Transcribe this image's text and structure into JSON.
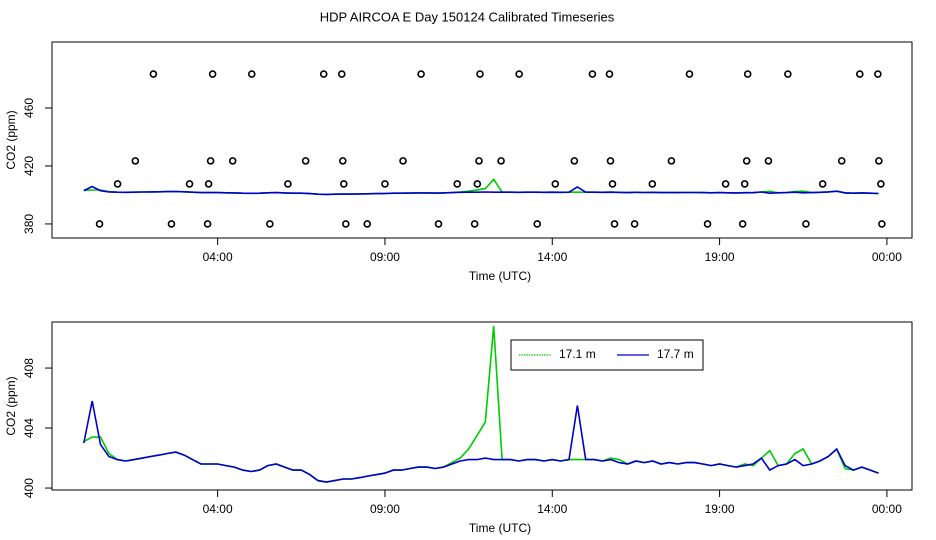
{
  "chart_data": [
    {
      "type": "line",
      "title": "HDP AIRCOA E  Day 150124  Calibrated Timeseries",
      "x_label": "Time (UTC)",
      "y_label": "CO2 (ppm)",
      "xlim": [
        -0.95,
        24.75
      ],
      "xticks": [
        {
          "value": 4,
          "label": "04:00"
        },
        {
          "value": 9,
          "label": "09:00"
        },
        {
          "value": 14,
          "label": "14:00"
        },
        {
          "value": 19,
          "label": "19:00"
        },
        {
          "value": 24,
          "label": "00:00"
        }
      ],
      "ylim": [
        370.3,
        505.5
      ],
      "yticks": [
        380,
        420,
        460
      ],
      "x": [
        0,
        0.25,
        0.5,
        0.75,
        1,
        1.25,
        1.5,
        1.75,
        2,
        2.25,
        2.5,
        2.75,
        3,
        3.25,
        3.5,
        3.75,
        4,
        4.25,
        4.5,
        4.75,
        5,
        5.25,
        5.5,
        5.75,
        6,
        6.25,
        6.5,
        6.75,
        7,
        7.25,
        7.5,
        7.75,
        8,
        8.25,
        8.5,
        8.75,
        9,
        9.25,
        9.5,
        9.75,
        10,
        10.25,
        10.5,
        10.75,
        11,
        11.25,
        11.5,
        11.75,
        12,
        12.25,
        12.5,
        12.75,
        13,
        13.25,
        13.5,
        13.75,
        14,
        14.25,
        14.5,
        14.75,
        15,
        15.25,
        15.5,
        15.75,
        16,
        16.25,
        16.5,
        16.75,
        17,
        17.25,
        17.5,
        17.75,
        18,
        18.25,
        18.5,
        18.75,
        19,
        19.25,
        19.5,
        19.75,
        20,
        20.25,
        20.5,
        20.75,
        21,
        21.25,
        21.5,
        21.75,
        22,
        22.25,
        22.5,
        22.75,
        23,
        23.25,
        23.5,
        23.75
      ],
      "series": [
        {
          "color": "#00cc00",
          "values": [
            403.1,
            403.4,
            403.4,
            402.3,
            401.9,
            401.8,
            401.9,
            402.0,
            402.1,
            402.2,
            402.3,
            402.4,
            402.2,
            401.9,
            401.6,
            401.6,
            401.6,
            401.5,
            401.4,
            401.2,
            401.1,
            401.2,
            401.5,
            401.6,
            401.4,
            401.2,
            401.2,
            400.9,
            400.5,
            400.4,
            400.5,
            400.6,
            400.6,
            400.7,
            400.8,
            400.9,
            401.0,
            401.2,
            401.2,
            401.3,
            401.4,
            401.4,
            401.3,
            401.4,
            401.7,
            402.0,
            402.6,
            403.5,
            404.4,
            410.8,
            401.9,
            401.9,
            401.8,
            401.9,
            401.9,
            401.8,
            401.9,
            401.8,
            401.9,
            401.9,
            401.9,
            401.9,
            401.8,
            402.0,
            401.9,
            401.6,
            401.8,
            401.7,
            401.8,
            401.6,
            401.7,
            401.6,
            401.7,
            401.7,
            401.6,
            401.5,
            401.6,
            401.5,
            401.4,
            401.6,
            401.5,
            402.0,
            402.5,
            401.5,
            401.6,
            402.3,
            402.6,
            401.6,
            401.8,
            402.1,
            402.6,
            401.3,
            401.2,
            401.4,
            401.2,
            401.0
          ]
        },
        {
          "color": "#0000cc",
          "values": [
            403.0,
            405.8,
            402.9,
            402.1,
            401.9,
            401.8,
            401.9,
            402.0,
            402.1,
            402.2,
            402.3,
            402.4,
            402.2,
            401.9,
            401.6,
            401.6,
            401.6,
            401.5,
            401.4,
            401.2,
            401.1,
            401.2,
            401.5,
            401.6,
            401.4,
            401.2,
            401.2,
            400.9,
            400.5,
            400.4,
            400.5,
            400.6,
            400.6,
            400.7,
            400.8,
            400.9,
            401.0,
            401.2,
            401.2,
            401.3,
            401.4,
            401.4,
            401.3,
            401.4,
            401.6,
            401.8,
            401.9,
            401.9,
            402.0,
            401.9,
            401.9,
            401.9,
            401.8,
            401.9,
            401.9,
            401.8,
            401.9,
            401.8,
            401.9,
            405.5,
            401.9,
            401.9,
            401.8,
            401.9,
            401.7,
            401.6,
            401.8,
            401.7,
            401.8,
            401.6,
            401.7,
            401.6,
            401.7,
            401.7,
            401.6,
            401.5,
            401.6,
            401.5,
            401.4,
            401.5,
            401.6,
            402.0,
            401.2,
            401.5,
            401.6,
            401.9,
            401.5,
            401.6,
            401.8,
            402.1,
            402.6,
            401.5,
            401.2,
            401.4,
            401.2,
            401.0
          ]
        }
      ],
      "points": {
        "color": "#000000",
        "x": [
          2.08,
          3.85,
          5.02,
          7.17,
          7.71,
          10.08,
          11.84,
          13.01,
          15.2,
          15.71,
          18.1,
          19.84,
          21.04,
          23.19,
          23.73,
          1.54,
          3.79,
          4.45,
          6.63,
          7.74,
          9.54,
          11.81,
          12.47,
          14.66,
          15.74,
          17.56,
          19.81,
          20.46,
          22.65,
          23.76,
          1.01,
          3.16,
          3.73,
          6.1,
          7.77,
          9.0,
          11.16,
          11.76,
          14.09,
          15.8,
          16.99,
          19.18,
          19.75,
          22.08,
          23.82,
          0.47,
          2.62,
          3.7,
          5.56,
          7.83,
          8.47,
          10.6,
          11.68,
          13.55,
          15.86,
          16.46,
          18.64,
          19.69,
          21.58,
          23.85
        ],
        "y": [
          483.4,
          483.4,
          483.4,
          483.4,
          483.4,
          483.4,
          483.4,
          483.4,
          483.4,
          483.4,
          483.4,
          483.4,
          483.4,
          483.4,
          483.4,
          423.5,
          423.5,
          423.5,
          423.5,
          423.5,
          423.5,
          423.5,
          423.5,
          423.5,
          423.5,
          423.5,
          423.5,
          423.5,
          423.5,
          423.5,
          407.6,
          407.6,
          407.6,
          407.6,
          407.6,
          407.6,
          407.6,
          407.6,
          407.6,
          407.6,
          407.6,
          407.6,
          407.6,
          407.6,
          407.6,
          380,
          380,
          380,
          380,
          380,
          380,
          380,
          380,
          380,
          380,
          380,
          380,
          380,
          380,
          380
        ]
      }
    },
    {
      "type": "line",
      "x_label": "Time (UTC)",
      "y_label": "CO2 (ppm)",
      "xlim": [
        -0.95,
        24.75
      ],
      "xticks": [
        {
          "value": 4,
          "label": "04:00"
        },
        {
          "value": 9,
          "label": "09:00"
        },
        {
          "value": 14,
          "label": "14:00"
        },
        {
          "value": 19,
          "label": "19:00"
        },
        {
          "value": 24,
          "label": "00:00"
        }
      ],
      "ylim": [
        399.87,
        411.07
      ],
      "yticks": [
        400,
        404,
        408
      ],
      "legend": "top",
      "x": [
        0,
        0.25,
        0.5,
        0.75,
        1,
        1.25,
        1.5,
        1.75,
        2,
        2.25,
        2.5,
        2.75,
        3,
        3.25,
        3.5,
        3.75,
        4,
        4.25,
        4.5,
        4.75,
        5,
        5.25,
        5.5,
        5.75,
        6,
        6.25,
        6.5,
        6.75,
        7,
        7.25,
        7.5,
        7.75,
        8,
        8.25,
        8.5,
        8.75,
        9,
        9.25,
        9.5,
        9.75,
        10,
        10.25,
        10.5,
        10.75,
        11,
        11.25,
        11.5,
        11.75,
        12,
        12.25,
        12.5,
        12.75,
        13,
        13.25,
        13.5,
        13.75,
        14,
        14.25,
        14.5,
        14.75,
        15,
        15.25,
        15.5,
        15.75,
        16,
        16.25,
        16.5,
        16.75,
        17,
        17.25,
        17.5,
        17.75,
        18,
        18.25,
        18.5,
        18.75,
        19,
        19.25,
        19.5,
        19.75,
        20,
        20.25,
        20.5,
        20.75,
        21,
        21.25,
        21.5,
        21.75,
        22,
        22.25,
        22.5,
        22.75,
        23,
        23.25,
        23.5,
        23.75
      ],
      "series": [
        {
          "name": "17.1 m",
          "color": "#00cc00",
          "values": [
            403.1,
            403.4,
            403.4,
            402.3,
            401.9,
            401.8,
            401.9,
            402.0,
            402.1,
            402.2,
            402.3,
            402.4,
            402.2,
            401.9,
            401.6,
            401.6,
            401.6,
            401.5,
            401.4,
            401.2,
            401.1,
            401.2,
            401.5,
            401.6,
            401.4,
            401.2,
            401.2,
            400.9,
            400.5,
            400.4,
            400.5,
            400.6,
            400.6,
            400.7,
            400.8,
            400.9,
            401.0,
            401.2,
            401.2,
            401.3,
            401.4,
            401.4,
            401.3,
            401.4,
            401.7,
            402.0,
            402.6,
            403.5,
            404.4,
            410.8,
            401.9,
            401.9,
            401.8,
            401.9,
            401.9,
            401.8,
            401.9,
            401.8,
            401.9,
            401.9,
            401.9,
            401.9,
            401.8,
            402.0,
            401.9,
            401.6,
            401.8,
            401.7,
            401.8,
            401.6,
            401.7,
            401.6,
            401.7,
            401.7,
            401.6,
            401.5,
            401.6,
            401.5,
            401.4,
            401.6,
            401.5,
            402.0,
            402.5,
            401.5,
            401.6,
            402.3,
            402.6,
            401.6,
            401.8,
            402.1,
            402.6,
            401.3,
            401.2,
            401.4,
            401.2,
            401.0
          ]
        },
        {
          "name": "17.7 m",
          "color": "#0000cc",
          "values": [
            403.0,
            405.8,
            402.9,
            402.1,
            401.9,
            401.8,
            401.9,
            402.0,
            402.1,
            402.2,
            402.3,
            402.4,
            402.2,
            401.9,
            401.6,
            401.6,
            401.6,
            401.5,
            401.4,
            401.2,
            401.1,
            401.2,
            401.5,
            401.6,
            401.4,
            401.2,
            401.2,
            400.9,
            400.5,
            400.4,
            400.5,
            400.6,
            400.6,
            400.7,
            400.8,
            400.9,
            401.0,
            401.2,
            401.2,
            401.3,
            401.4,
            401.4,
            401.3,
            401.4,
            401.6,
            401.8,
            401.9,
            401.9,
            402.0,
            401.9,
            401.9,
            401.9,
            401.8,
            401.9,
            401.9,
            401.8,
            401.9,
            401.8,
            401.9,
            405.5,
            401.9,
            401.9,
            401.8,
            401.9,
            401.7,
            401.6,
            401.8,
            401.7,
            401.8,
            401.6,
            401.7,
            401.6,
            401.7,
            401.7,
            401.6,
            401.5,
            401.6,
            401.5,
            401.4,
            401.5,
            401.6,
            402.0,
            401.2,
            401.5,
            401.6,
            401.9,
            401.5,
            401.6,
            401.8,
            402.1,
            402.6,
            401.5,
            401.2,
            401.4,
            401.2,
            401.0
          ]
        }
      ]
    }
  ]
}
